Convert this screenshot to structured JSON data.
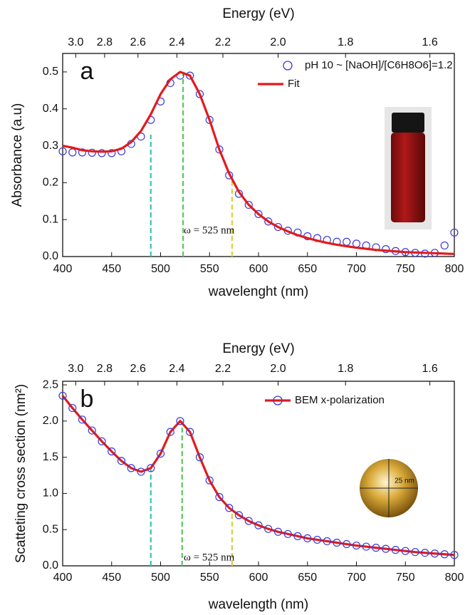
{
  "chart_data": [
    {
      "type": "line",
      "panel": "a",
      "title_top": "Energy (eV)",
      "xlabel": "wavelenght (nm)",
      "ylabel": "Absorbance (a.u)",
      "x": [
        400,
        410,
        420,
        430,
        440,
        450,
        460,
        470,
        480,
        490,
        500,
        510,
        520,
        530,
        540,
        550,
        560,
        570,
        580,
        590,
        600,
        610,
        620,
        630,
        640,
        650,
        660,
        670,
        680,
        690,
        700,
        710,
        720,
        730,
        740,
        750,
        760,
        770,
        780,
        790,
        800
      ],
      "series": [
        {
          "name": "pH 10 ~ [NaOH]/[C6H8O6]=1.2",
          "color": "#3b3bd6",
          "mode": "markers",
          "values": [
            0.285,
            0.282,
            0.282,
            0.281,
            0.28,
            0.28,
            0.285,
            0.305,
            0.325,
            0.37,
            0.42,
            0.47,
            0.49,
            0.49,
            0.44,
            0.37,
            0.29,
            0.22,
            0.17,
            0.14,
            0.115,
            0.095,
            0.08,
            0.07,
            0.065,
            0.055,
            0.05,
            0.045,
            0.04,
            0.04,
            0.035,
            0.03,
            0.025,
            0.02,
            0.015,
            0.012,
            0.01,
            0.008,
            0.01,
            0.03,
            0.065
          ]
        },
        {
          "name": "Fit",
          "color": "#e31a1c",
          "mode": "line",
          "values": [
            0.3,
            0.295,
            0.288,
            0.285,
            0.284,
            0.285,
            0.292,
            0.31,
            0.34,
            0.385,
            0.44,
            0.48,
            0.5,
            0.49,
            0.44,
            0.37,
            0.29,
            0.225,
            0.175,
            0.14,
            0.115,
            0.095,
            0.08,
            0.068,
            0.058,
            0.05,
            0.043,
            0.037,
            0.032,
            0.028,
            0.024,
            0.021,
            0.018,
            0.016,
            0.014,
            0.012,
            0.011,
            0.01,
            0.009,
            0.008,
            0.007
          ]
        }
      ],
      "xlim": [
        400,
        800
      ],
      "xticks": [
        400,
        450,
        500,
        550,
        600,
        650,
        700,
        750,
        800
      ],
      "ylim": [
        0,
        0.55
      ],
      "yticks": [
        {
          "value": 0,
          "label": "0.0"
        },
        0.1,
        0.2,
        0.3,
        0.4,
        0.5
      ],
      "x2ticks": [
        {
          "value": 3,
          "label": "3.0"
        },
        2.8,
        2.6,
        2.4,
        2.2,
        {
          "value": 2,
          "label": "2.0"
        },
        1.8,
        1.6
      ],
      "vlines": [
        {
          "x": 490,
          "top": 0.33,
          "color": "#33c4b4"
        },
        {
          "x": 523,
          "top": 0.5,
          "color": "#5ac85a"
        },
        {
          "x": 573,
          "top": 0.21,
          "color": "#d8d040"
        }
      ],
      "annotation": "ω = 525 nm"
    },
    {
      "type": "line",
      "panel": "b",
      "title_top": "Energy (eV)",
      "xlabel": "wavelength (nm)",
      "ylabel": "Scatteting cross section (nm²)",
      "x": [
        400,
        410,
        420,
        430,
        440,
        450,
        460,
        470,
        480,
        490,
        500,
        510,
        520,
        530,
        540,
        550,
        560,
        570,
        580,
        590,
        600,
        610,
        620,
        630,
        640,
        650,
        660,
        670,
        680,
        690,
        700,
        710,
        720,
        730,
        740,
        750,
        760,
        770,
        780,
        790,
        800
      ],
      "series": [
        {
          "name": "BEM x-polarization",
          "color": "#e31a1c",
          "marker_color": "#3b3bd6",
          "mode": "line+markers",
          "values": [
            2.35,
            2.18,
            2.02,
            1.87,
            1.72,
            1.58,
            1.45,
            1.35,
            1.3,
            1.35,
            1.55,
            1.85,
            2.0,
            1.85,
            1.5,
            1.18,
            0.95,
            0.8,
            0.7,
            0.62,
            0.56,
            0.51,
            0.47,
            0.44,
            0.41,
            0.38,
            0.36,
            0.34,
            0.32,
            0.3,
            0.28,
            0.265,
            0.25,
            0.235,
            0.22,
            0.205,
            0.19,
            0.18,
            0.17,
            0.16,
            0.15
          ]
        }
      ],
      "xlim": [
        400,
        800
      ],
      "xticks": [
        400,
        450,
        500,
        550,
        600,
        650,
        700,
        750,
        800
      ],
      "ylim": [
        0,
        2.55
      ],
      "yticks": [
        {
          "value": 0,
          "label": "0.0"
        },
        0.5,
        {
          "value": 1,
          "label": "1.0"
        },
        1.5,
        {
          "value": 2,
          "label": "2.0"
        },
        2.5
      ],
      "x2ticks": [
        {
          "value": 3,
          "label": "3.0"
        },
        2.8,
        2.6,
        2.4,
        2.2,
        {
          "value": 2,
          "label": "2.0"
        },
        1.8,
        1.6
      ],
      "vlines": [
        {
          "x": 490,
          "top": 1.33,
          "color": "#33c4b4"
        },
        {
          "x": 522,
          "top": 2.0,
          "color": "#5ac85a"
        },
        {
          "x": 573,
          "top": 0.77,
          "color": "#d8d040"
        }
      ],
      "annotation": "ω = 525 nm",
      "inset_label": "25 nm"
    }
  ]
}
